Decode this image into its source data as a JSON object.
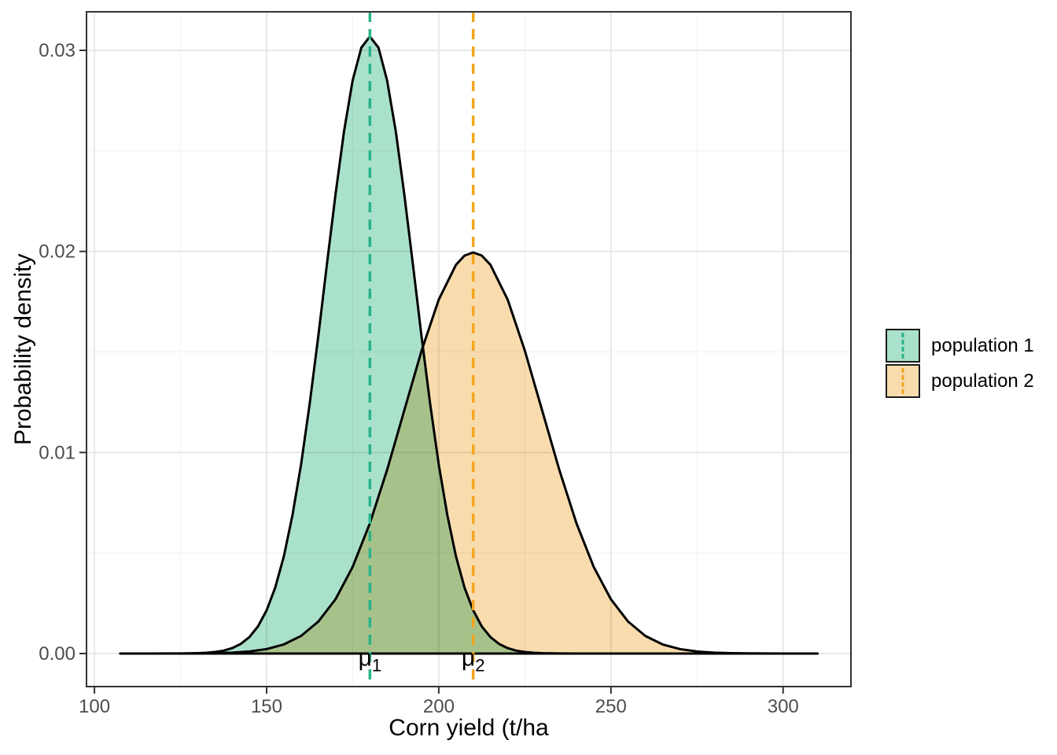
{
  "style": {
    "background": "#ffffff",
    "grid_major_color": "#e8e8e8",
    "grid_minor_color": "#f3f3f3",
    "panel_border_color": "#333333",
    "tick_color": "#333333",
    "tick_label_color": "#4d4d4d",
    "text_color": "#000000",
    "curve_color": "#000000"
  },
  "chart_data": {
    "type": "area",
    "subtype": "probability-density-curves",
    "title": "",
    "xlabel": "Corn yield (t/ha",
    "ylabel": "Probability density",
    "x_domain": [
      97.7,
      319.7
    ],
    "y_domain": [
      -0.001643,
      0.031917
    ],
    "grid": true,
    "legend_position": "right",
    "x_ticks": [
      {
        "v": 100,
        "label": "100"
      },
      {
        "v": 150,
        "label": "150"
      },
      {
        "v": 200,
        "label": "200"
      },
      {
        "v": 250,
        "label": "250"
      },
      {
        "v": 300,
        "label": "300"
      }
    ],
    "y_ticks": [
      {
        "v": 0.0,
        "label": "0.00"
      },
      {
        "v": 0.01,
        "label": "0.01"
      },
      {
        "v": 0.02,
        "label": "0.02"
      },
      {
        "v": 0.03,
        "label": "0.03"
      }
    ],
    "x_minor": [
      125,
      175,
      225,
      275
    ],
    "y_minor": [
      0.005,
      0.015,
      0.025
    ],
    "series": [
      {
        "name": "population 1",
        "distribution": "normal",
        "mean": 180,
        "sd": 13,
        "peak_density": 0.03069,
        "fill": "#aae1cb",
        "line_color": "#29b28a",
        "points": [
          [
            107.5,
            0
          ],
          [
            115,
            0
          ],
          [
            122.5,
            2e-06
          ],
          [
            125,
            4e-06
          ],
          [
            127.5,
            9e-06
          ],
          [
            130,
            1.88e-05
          ],
          [
            132.5,
            3.87e-05
          ],
          [
            135,
            7.68e-05
          ],
          [
            137.5,
            0.000146
          ],
          [
            140,
            0.00027
          ],
          [
            142.5,
            0.000479
          ],
          [
            145,
            0.000818
          ],
          [
            147.5,
            0.001349
          ],
          [
            150,
            0.002146
          ],
          [
            152.5,
            0.003275
          ],
          [
            155,
            0.00483
          ],
          [
            157.5,
            0.006863
          ],
          [
            160,
            0.0094
          ],
          [
            162.5,
            0.012402
          ],
          [
            165,
            0.015773
          ],
          [
            167.5,
            0.01933
          ],
          [
            170,
            0.02283
          ],
          [
            172.5,
            0.025986
          ],
          [
            175,
            0.028502
          ],
          [
            177.5,
            0.030128
          ],
          [
            180,
            0.03069
          ],
          [
            182.5,
            0.030128
          ],
          [
            185,
            0.028502
          ],
          [
            187.5,
            0.025986
          ],
          [
            190,
            0.02283
          ],
          [
            192.5,
            0.01933
          ],
          [
            195,
            0.015773
          ],
          [
            197.5,
            0.012402
          ],
          [
            200,
            0.0094
          ],
          [
            202.5,
            0.006863
          ],
          [
            205,
            0.00483
          ],
          [
            207.5,
            0.003275
          ],
          [
            210,
            0.002146
          ],
          [
            212.5,
            0.001349
          ],
          [
            215,
            0.000818
          ],
          [
            217.5,
            0.000479
          ],
          [
            220,
            0.00027
          ],
          [
            222.5,
            0.000146
          ],
          [
            225,
            7.68e-05
          ],
          [
            227.5,
            3.87e-05
          ],
          [
            230,
            1.88e-05
          ],
          [
            235,
            3.9e-06
          ],
          [
            240,
            7e-07
          ],
          [
            250,
            0
          ],
          [
            270,
            0
          ],
          [
            290,
            0
          ],
          [
            310,
            0
          ]
        ]
      },
      {
        "name": "population 2",
        "distribution": "normal",
        "mean": 210,
        "sd": 20,
        "peak_density": 0.019947,
        "fill": "#f9dcae",
        "line_color": "#f4a61e",
        "points": [
          [
            107.5,
            0
          ],
          [
            120,
            0
          ],
          [
            125,
            5e-07
          ],
          [
            130,
            6.7e-06
          ],
          [
            135,
            1.76e-05
          ],
          [
            140,
            4.36e-05
          ],
          [
            145,
            0.0001015
          ],
          [
            150,
            0.0002216
          ],
          [
            155,
            0.0004548
          ],
          [
            160,
            0.0008764
          ],
          [
            165,
            0.001587
          ],
          [
            170,
            0.0026996
          ],
          [
            175,
            0.004312
          ],
          [
            180,
            0.0064759
          ],
          [
            185,
            0.0091324
          ],
          [
            190,
            0.0120986
          ],
          [
            195,
            0.0150569
          ],
          [
            200,
            0.0176033
          ],
          [
            205,
            0.0193334
          ],
          [
            207.5,
            0.0197919
          ],
          [
            210,
            0.0199471
          ],
          [
            212.5,
            0.0197919
          ],
          [
            215,
            0.0193334
          ],
          [
            220,
            0.0176033
          ],
          [
            225,
            0.0150569
          ],
          [
            230,
            0.0120986
          ],
          [
            235,
            0.0091324
          ],
          [
            240,
            0.0064759
          ],
          [
            245,
            0.004312
          ],
          [
            250,
            0.0026996
          ],
          [
            255,
            0.001587
          ],
          [
            260,
            0.0008764
          ],
          [
            265,
            0.0004548
          ],
          [
            270,
            0.0002216
          ],
          [
            275,
            0.0001015
          ],
          [
            280,
            4.36e-05
          ],
          [
            285,
            1.76e-05
          ],
          [
            290,
            6.7e-06
          ],
          [
            295,
            2.4e-06
          ],
          [
            300,
            8e-07
          ],
          [
            310,
            0
          ]
        ]
      }
    ],
    "mean_lines": [
      {
        "x": 180,
        "color": "#29b28a",
        "linetype": "dashed"
      },
      {
        "x": 210,
        "color": "#f4a61e",
        "linetype": "dashed"
      }
    ],
    "annotations": [
      {
        "text": "μ",
        "subscript": "1",
        "x": 180,
        "y": -0.0006
      },
      {
        "text": "μ",
        "subscript": "2",
        "x": 210,
        "y": -0.0006
      }
    ]
  },
  "legend": {
    "items": [
      {
        "label": "population 1"
      },
      {
        "label": "population 2"
      }
    ]
  }
}
